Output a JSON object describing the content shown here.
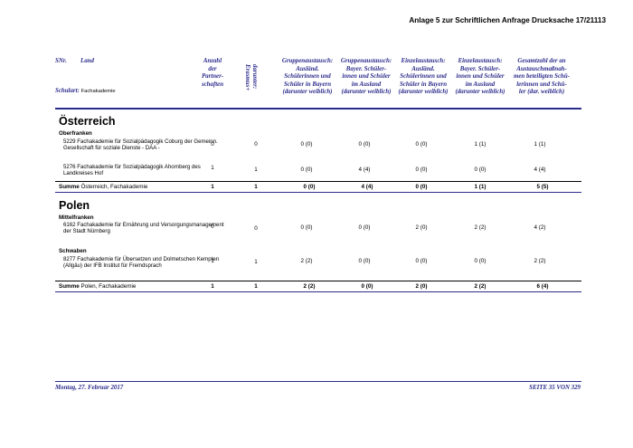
{
  "caption": "Anlage 5 zur Schriftlichen Anfrage Drucksache 17/21113",
  "header": {
    "snr": "SNr.",
    "land": "Land",
    "school_type_label": "Schulart:",
    "school_type_value": "Fachakademie",
    "col_partner": "Anzahl\nder\nPartner-\nschaften",
    "col_erasmus": "darunter:\nErasmus+",
    "col_g1": "Gruppenaustausch:\nAusländ.\nSchülerinnen und\nSchüler in Bayern\n(darunter weiblich)",
    "col_g2": "Gruppenaustausch:\nBayer. Schüler-\ninnen und Schüler\nim Ausland\n(darunter weiblich)",
    "col_e1": "Einzelaustausch:\nAusländ.\nSchülerinnen und\nSchüler in Bayern\n(darunter weiblich)",
    "col_e2": "Einzelaustausch:\nBayer. Schüler-\ninnen und Schüler\nim Ausland\n(darunter weiblich)",
    "col_total": "Gesamtzahl der an\nAustauschmaßnah-\nmen beteiligten Schü-\nlerinnen und Schü-\nler (dar. weiblich)"
  },
  "sections": [
    {
      "country": "Österreich",
      "regions": [
        {
          "name": "Oberfranken",
          "rows": [
            {
              "snr": "5229",
              "name": "Fachakademie für Sozialpädagogik Coburg der Gemeinn. Gesellschaft für soziale Dienste - DAA -",
              "vals": [
                "0",
                "0",
                "0 (0)",
                "0 (0)",
                "0 (0)",
                "1 (1)",
                "1 (1)"
              ]
            },
            {
              "snr": "5276",
              "name": "Fachakademie für Sozialpädagogik Ahornberg des Landkreises Hof",
              "vals": [
                "1",
                "1",
                "0 (0)",
                "4 (4)",
                "0 (0)",
                "0 (0)",
                "4 (4)"
              ]
            }
          ]
        }
      ],
      "sum_label": "Summe",
      "sum_text": "Österreich, Fachakademie",
      "sum_vals": [
        "1",
        "1",
        "0 (0)",
        "4 (4)",
        "0 (0)",
        "1 (1)",
        "5 (5)"
      ]
    },
    {
      "country": "Polen",
      "regions": [
        {
          "name": "Mittelfranken",
          "rows": [
            {
              "snr": "6162",
              "name": "Fachakademie für Ernährung und Versorgungsmanagement der Stadt Nürnberg",
              "vals": [
                "0",
                "0",
                "0 (0)",
                "0 (0)",
                "2 (0)",
                "2 (2)",
                "4 (2)"
              ]
            }
          ]
        },
        {
          "name": "Schwaben",
          "rows": [
            {
              "snr": "8277",
              "name": "Fachakademie für Übersetzen und Dolmetschen Kempten (Allgäu) der IFB Institut für Fremdsprach",
              "vals": [
                "1",
                "1",
                "2 (2)",
                "0 (0)",
                "0 (0)",
                "0 (0)",
                "2 (2)"
              ]
            }
          ]
        }
      ],
      "sum_label": "Summe",
      "sum_text": "Polen, Fachakademie",
      "sum_vals": [
        "1",
        "1",
        "2 (2)",
        "0 (0)",
        "2 (0)",
        "2 (2)",
        "6 (4)"
      ]
    }
  ],
  "footer": {
    "date": "Montag, 27. Februar 2017",
    "page": "SEITE 35 VON 329"
  },
  "colors": {
    "header_blue": "#2b2b8c",
    "text": "#000000"
  }
}
